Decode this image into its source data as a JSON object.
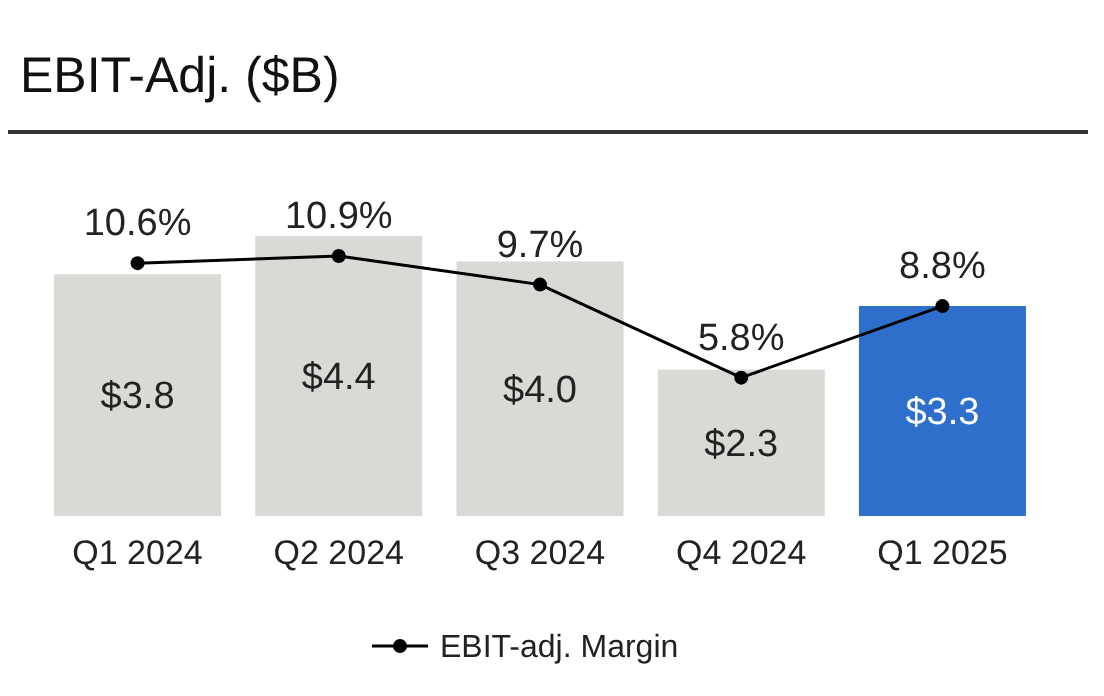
{
  "chart_data": {
    "type": "bar",
    "title": "EBIT-Adj. ($B)",
    "categories": [
      "Q1 2024",
      "Q2 2024",
      "Q3 2024",
      "Q4 2024",
      "Q1 2025"
    ],
    "tick_labels": "x",
    "legend": "bottom",
    "marker": "circle",
    "series": [
      {
        "colors": [
          "#d9d9d6",
          "#d9d9d6",
          "#d9d9d6",
          "#d9d9d6",
          "#2f6fcc"
        ],
        "values": [
          3.8,
          4.4,
          4.0,
          2.3,
          3.3
        ],
        "value_labels": [
          "$3.8",
          "$4.4",
          "$4.0",
          "$2.3",
          "$3.3"
        ]
      },
      {
        "type": "line",
        "name": "EBIT-adj. Margin",
        "axis": "y2",
        "color": "#000000",
        "values": [
          10.6,
          10.9,
          9.7,
          5.8,
          8.8
        ],
        "value_labels": [
          "10.6%",
          "10.9%",
          "9.7%",
          "5.8%",
          "8.8%"
        ]
      }
    ]
  }
}
